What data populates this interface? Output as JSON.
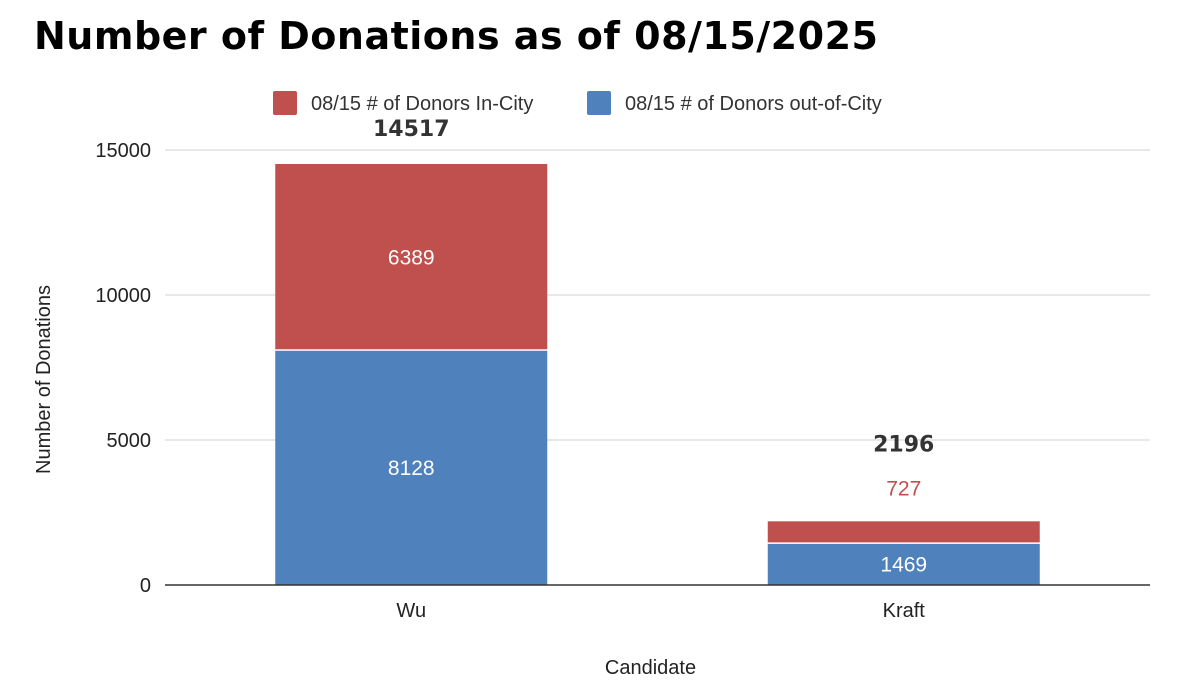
{
  "chart_data": {
    "type": "bar",
    "stacked": true,
    "title": "Number of Donations as of 08/15/2025",
    "xlabel": "Candidate",
    "ylabel": "Number of Donations",
    "categories": [
      "Wu",
      "Kraft"
    ],
    "series": [
      {
        "name": "08/15 # of Donors out-of-City",
        "values": [
          8128,
          1469
        ],
        "color": "#4f81bd"
      },
      {
        "name": "08/15 # of Donors In-City",
        "values": [
          6389,
          727
        ],
        "color": "#c0504d"
      }
    ],
    "totals": [
      14517,
      2196
    ],
    "ylim": [
      0,
      15000
    ],
    "yticks": [
      0,
      5000,
      10000,
      15000
    ],
    "grid": true,
    "legend_position": "top"
  }
}
